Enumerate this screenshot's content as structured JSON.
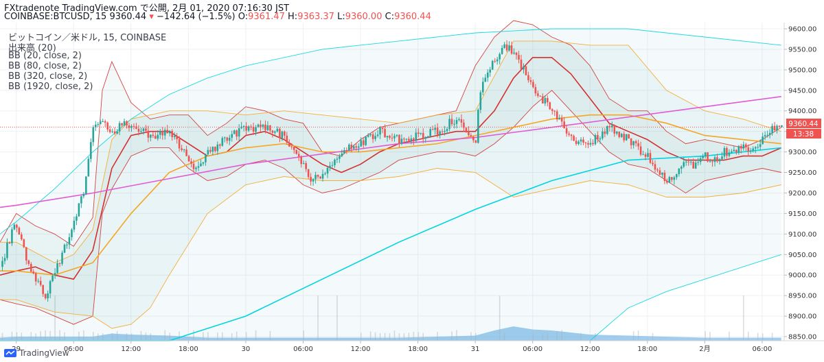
{
  "header": {
    "line1": "FXtradenote TradingView.com で公開, 2月 01, 2020 07:16:30 JST",
    "symbol": "COINBASE:BTCUSD, 15",
    "last": "9360.44",
    "change_arrow": "▾",
    "change": "−142.64 (−1.5%)",
    "o_label": "O:",
    "o_value": "9361.47",
    "h_label": "H:",
    "h_value": "9363.37",
    "l_label": "L:",
    "l_value": "9360.00",
    "c_label": "C:",
    "c_value": "9360.44"
  },
  "legend": [
    "ビットコイン／米ドル, 15, COINBASE",
    "出来高 (20)",
    "BB (20, close, 2)",
    "BB (80, close, 2)",
    "BB (320, close, 2)",
    "BB (1920, close, 2)"
  ],
  "price_tag": {
    "value": "9360.44",
    "countdown": "13:38"
  },
  "footer": {
    "brand": "TradingView"
  },
  "colors": {
    "up": "#26a69a",
    "down": "#ef5350",
    "bb20": "#d32f2f",
    "bb80": "#f5a623",
    "bb320": "#00d4e0",
    "bb1920": "#e05ad5",
    "volume": "#7ab8e8",
    "axis_text": "#333333"
  },
  "chart_data": {
    "type": "candlestick",
    "y_axis": {
      "side": "right",
      "ylim": [
        8840,
        9615
      ],
      "ticks": [
        "9600.00",
        "9550.00",
        "9500.00",
        "9450.00",
        "9400.00",
        "9350.00",
        "9300.00",
        "9250.00",
        "9200.00",
        "9150.00",
        "9100.00",
        "9050.00",
        "9000.00",
        "8950.00",
        "8900.00",
        "8850.00"
      ]
    },
    "x_axis": {
      "ticks": [
        "29",
        "06:00",
        "12:00",
        "18:00",
        "30",
        "06:00",
        "12:00",
        "18:00",
        "31",
        "06:00",
        "12:00",
        "18:00",
        "2月",
        "06:00"
      ],
      "tick_hours": [
        0,
        6,
        12,
        18,
        24,
        30,
        36,
        42,
        48,
        54,
        60,
        66,
        72,
        78
      ],
      "xlim_hours": [
        -1.7,
        80.3
      ]
    },
    "close_path": {
      "hours": [
        -1.7,
        0,
        1,
        2,
        3,
        4,
        5,
        6,
        7,
        8,
        9,
        9.5,
        10,
        11,
        12,
        14,
        16,
        18,
        19,
        20,
        22,
        24,
        26,
        28,
        30,
        31,
        32,
        33,
        34,
        36,
        38,
        40,
        42,
        44,
        46,
        48,
        48.5,
        49,
        50,
        51,
        52,
        53,
        54,
        55,
        56,
        57,
        58,
        60,
        62,
        64,
        66,
        68,
        70,
        71,
        72,
        73,
        74,
        75,
        76,
        77,
        78,
        79,
        80
      ],
      "price": [
        9020,
        9130,
        9040,
        8990,
        8945,
        9000,
        9060,
        9130,
        9200,
        9360,
        9380,
        9350,
        9340,
        9370,
        9360,
        9340,
        9350,
        9280,
        9260,
        9300,
        9330,
        9360,
        9360,
        9340,
        9270,
        9230,
        9250,
        9270,
        9300,
        9320,
        9350,
        9330,
        9340,
        9350,
        9380,
        9320,
        9440,
        9490,
        9520,
        9560,
        9540,
        9500,
        9460,
        9430,
        9400,
        9370,
        9330,
        9320,
        9360,
        9330,
        9290,
        9230,
        9270,
        9270,
        9290,
        9280,
        9300,
        9300,
        9310,
        9310,
        9330,
        9360,
        9360
      ]
    },
    "series": [
      {
        "name": "BB (20, close, 2)",
        "kind": "basis",
        "hours": [
          -1.7,
          0,
          2,
          4,
          6,
          8,
          10,
          12,
          14,
          16,
          18,
          20,
          22,
          24,
          26,
          28,
          30,
          32,
          34,
          36,
          38,
          40,
          42,
          44,
          46,
          48,
          50,
          52,
          54,
          56,
          58,
          60,
          62,
          64,
          66,
          68,
          70,
          72,
          74,
          76,
          78,
          80
        ],
        "price": [
          9000,
          9010,
          9020,
          9000,
          8990,
          9060,
          9260,
          9340,
          9350,
          9350,
          9320,
          9290,
          9300,
          9340,
          9350,
          9330,
          9300,
          9270,
          9250,
          9270,
          9300,
          9320,
          9330,
          9340,
          9350,
          9350,
          9400,
          9480,
          9530,
          9530,
          9490,
          9430,
          9370,
          9350,
          9330,
          9300,
          9280,
          9280,
          9280,
          9290,
          9290,
          9310
        ]
      },
      {
        "name": "BB (20, close, 2)",
        "kind": "upper",
        "hours": [
          -1.7,
          0,
          2,
          4,
          6,
          8,
          9,
          10,
          12,
          14,
          16,
          18,
          20,
          22,
          24,
          26,
          28,
          30,
          32,
          34,
          36,
          38,
          40,
          42,
          44,
          46,
          48,
          50,
          52,
          54,
          56,
          58,
          60,
          62,
          64,
          66,
          68,
          70,
          72,
          74,
          76,
          78,
          80
        ],
        "price": [
          9080,
          9150,
          9120,
          9100,
          9070,
          9140,
          9450,
          9520,
          9420,
          9380,
          9390,
          9390,
          9340,
          9370,
          9410,
          9400,
          9380,
          9370,
          9300,
          9290,
          9330,
          9360,
          9370,
          9380,
          9390,
          9400,
          9510,
          9580,
          9620,
          9610,
          9580,
          9560,
          9510,
          9430,
          9400,
          9400,
          9350,
          9320,
          9330,
          9320,
          9310,
          9330,
          9360
        ]
      },
      {
        "name": "BB (20, close, 2)",
        "kind": "lower",
        "hours": [
          -1.7,
          0,
          2,
          4,
          6,
          8,
          9,
          10,
          12,
          14,
          16,
          18,
          20,
          22,
          24,
          26,
          28,
          30,
          32,
          34,
          36,
          38,
          40,
          42,
          44,
          46,
          48,
          50,
          52,
          54,
          56,
          58,
          60,
          62,
          64,
          66,
          68,
          70,
          72,
          74,
          76,
          78,
          80
        ],
        "price": [
          8940,
          8930,
          8920,
          8900,
          8880,
          8900,
          9150,
          9210,
          9290,
          9310,
          9310,
          9260,
          9230,
          9240,
          9270,
          9280,
          9260,
          9220,
          9200,
          9210,
          9230,
          9250,
          9280,
          9290,
          9300,
          9300,
          9290,
          9320,
          9360,
          9410,
          9450,
          9400,
          9350,
          9300,
          9270,
          9260,
          9230,
          9200,
          9230,
          9240,
          9250,
          9260,
          9250
        ]
      },
      {
        "name": "BB (80, close, 2)",
        "kind": "basis",
        "hours": [
          -1.7,
          0,
          4,
          8,
          12,
          16,
          20,
          24,
          28,
          32,
          36,
          40,
          44,
          48,
          52,
          56,
          60,
          64,
          68,
          72,
          76,
          80
        ],
        "price": [
          9010,
          9010,
          9000,
          9030,
          9150,
          9250,
          9290,
          9310,
          9320,
          9300,
          9300,
          9310,
          9320,
          9340,
          9360,
          9380,
          9390,
          9390,
          9370,
          9340,
          9330,
          9320
        ]
      },
      {
        "name": "BB (80, close, 2)",
        "kind": "upper",
        "hours": [
          -1.7,
          0,
          4,
          6,
          8,
          10,
          12,
          16,
          20,
          24,
          28,
          32,
          36,
          40,
          44,
          48,
          52,
          56,
          60,
          64,
          68,
          72,
          76,
          80
        ],
        "price": [
          9080,
          9080,
          9030,
          9050,
          9110,
          9330,
          9380,
          9400,
          9400,
          9390,
          9400,
          9390,
          9380,
          9370,
          9390,
          9400,
          9570,
          9570,
          9560,
          9560,
          9450,
          9400,
          9380,
          9350
        ]
      },
      {
        "name": "BB (80, close, 2)",
        "kind": "lower",
        "hours": [
          -1.7,
          0,
          4,
          8,
          10,
          12,
          14,
          16,
          20,
          24,
          28,
          32,
          36,
          40,
          44,
          48,
          52,
          56,
          60,
          64,
          68,
          72,
          76,
          80
        ],
        "price": [
          8940,
          8940,
          8910,
          8900,
          8870,
          8880,
          8920,
          9000,
          9150,
          9220,
          9240,
          9230,
          9230,
          9240,
          9260,
          9250,
          9190,
          9210,
          9230,
          9220,
          9190,
          9190,
          9200,
          9220
        ]
      },
      {
        "name": "BB (320, close, 2)",
        "kind": "basis",
        "hours": [
          -1.7,
          0,
          8,
          16,
          24,
          32,
          40,
          48,
          56,
          64,
          72,
          80
        ],
        "price": [
          8820,
          8820,
          8820,
          8825,
          8900,
          8990,
          9080,
          9160,
          9230,
          9280,
          9290,
          9310
        ]
      },
      {
        "name": "BB (320, close, 2)",
        "kind": "upper",
        "hours": [
          -1.7,
          0,
          4,
          8,
          12,
          16,
          20,
          24,
          32,
          40,
          48,
          56,
          64,
          72,
          80
        ],
        "price": [
          9100,
          9130,
          9210,
          9300,
          9380,
          9440,
          9480,
          9510,
          9550,
          9570,
          9590,
          9600,
          9600,
          9580,
          9560
        ]
      },
      {
        "name": "BB (320, close, 2)",
        "kind": "lower",
        "hours": [
          60,
          64,
          68,
          72,
          76,
          80
        ],
        "price": [
          8840,
          8920,
          8960,
          8990,
          9020,
          9050
        ]
      },
      {
        "name": "BB (1920, close, 2)",
        "kind": "basis",
        "hours": [
          -1.7,
          0,
          8,
          16,
          24,
          32,
          40,
          48,
          56,
          64,
          72,
          80
        ],
        "price": [
          9165,
          9170,
          9200,
          9235,
          9270,
          9295,
          9320,
          9335,
          9360,
          9385,
          9410,
          9435
        ]
      }
    ],
    "volume": {
      "hours": [
        -1.7,
        0,
        4,
        8,
        10,
        12,
        16,
        20,
        24,
        28,
        32,
        36,
        40,
        44,
        48,
        50,
        52,
        54,
        56,
        58,
        60,
        64,
        68,
        72,
        76,
        80
      ],
      "level": [
        0.15,
        0.2,
        0.2,
        0.2,
        0.35,
        0.3,
        0.25,
        0.15,
        0.15,
        0.15,
        0.15,
        0.15,
        0.15,
        0.2,
        0.25,
        0.5,
        0.7,
        0.55,
        0.5,
        0.4,
        0.3,
        0.25,
        0.2,
        0.15,
        0.15,
        0.15
      ]
    },
    "last_price": 9360.44
  }
}
